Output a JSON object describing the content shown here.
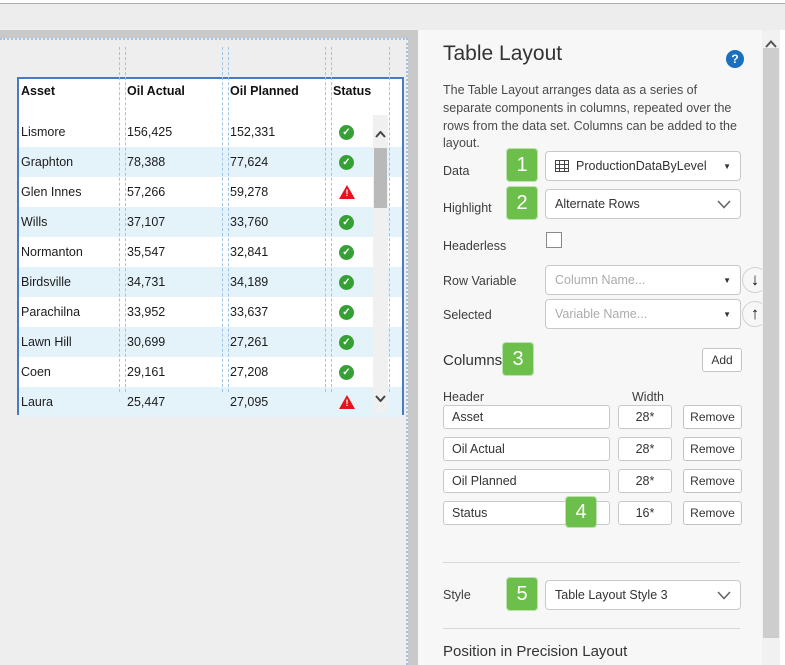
{
  "table_widget": {
    "columns": [
      "Asset",
      "Oil Actual",
      "Oil Planned",
      "Status"
    ],
    "rows": [
      {
        "asset": "Lismore",
        "oil_actual": "156,425",
        "oil_planned": "152,331",
        "status": "ok"
      },
      {
        "asset": "Graphton",
        "oil_actual": "78,388",
        "oil_planned": "77,624",
        "status": "ok"
      },
      {
        "asset": "Glen Innes",
        "oil_actual": "57,266",
        "oil_planned": "59,278",
        "status": "warning"
      },
      {
        "asset": "Wills",
        "oil_actual": "37,107",
        "oil_planned": "33,760",
        "status": "ok"
      },
      {
        "asset": "Normanton",
        "oil_actual": "35,547",
        "oil_planned": "32,841",
        "status": "ok"
      },
      {
        "asset": "Birdsville",
        "oil_actual": "34,731",
        "oil_planned": "34,189",
        "status": "ok"
      },
      {
        "asset": "Parachilna",
        "oil_actual": "33,952",
        "oil_planned": "33,637",
        "status": "ok"
      },
      {
        "asset": "Lawn Hill",
        "oil_actual": "30,699",
        "oil_planned": "27,261",
        "status": "ok"
      },
      {
        "asset": "Coen",
        "oil_actual": "29,161",
        "oil_planned": "27,208",
        "status": "ok"
      },
      {
        "asset": "Laura",
        "oil_actual": "25,447",
        "oil_planned": "27,095",
        "status": "warning"
      }
    ],
    "status_ok_glyph": "✓",
    "status_warning_glyph": "!"
  },
  "panel": {
    "title": "Table Layout",
    "help_glyph": "?",
    "description": "The Table Layout arranges data as a series of separate components in columns, repeated over the rows from the data set. Columns can be added to the layout.",
    "fields": {
      "data_label": "Data",
      "data_value": "ProductionDataByLevel",
      "highlight_label": "Highlight",
      "highlight_value": "Alternate Rows",
      "headerless_label": "Headerless",
      "row_variable_label": "Row Variable",
      "row_variable_placeholder": "Column Name...",
      "selected_label": "Selected",
      "selected_placeholder": "Variable Name...",
      "move_down_glyph": "↓",
      "move_up_glyph": "↑",
      "dropdown_triangle_glyph": "▼"
    },
    "columns_section": {
      "heading": "Columns",
      "add_label": "Add",
      "header_col_label": "Header",
      "width_col_label": "Width",
      "remove_label": "Remove",
      "rows": [
        {
          "header": "Asset",
          "width": "28*"
        },
        {
          "header": "Oil Actual",
          "width": "28*"
        },
        {
          "header": "Oil Planned",
          "width": "28*"
        },
        {
          "header": "Status",
          "width": "16*"
        }
      ]
    },
    "style_label": "Style",
    "style_value": "Table Layout Style 3",
    "position_heading": "Position in Precision Layout"
  },
  "badges": [
    "1",
    "2",
    "3",
    "4",
    "5"
  ],
  "colors": {
    "selection_border_blue": "#4a7ac4",
    "guide_dash_blue": "#9ec5e8",
    "alt_row_blue": "#e4f2fa",
    "status_ok_green": "#35a135",
    "status_warn_red": "#e6131a",
    "badge_green": "#6cbf4a",
    "help_icon_blue": "#1a6fbe",
    "panel_bg": "#f7f7f7",
    "canvas_outer_gray": "#c9c9c9"
  }
}
